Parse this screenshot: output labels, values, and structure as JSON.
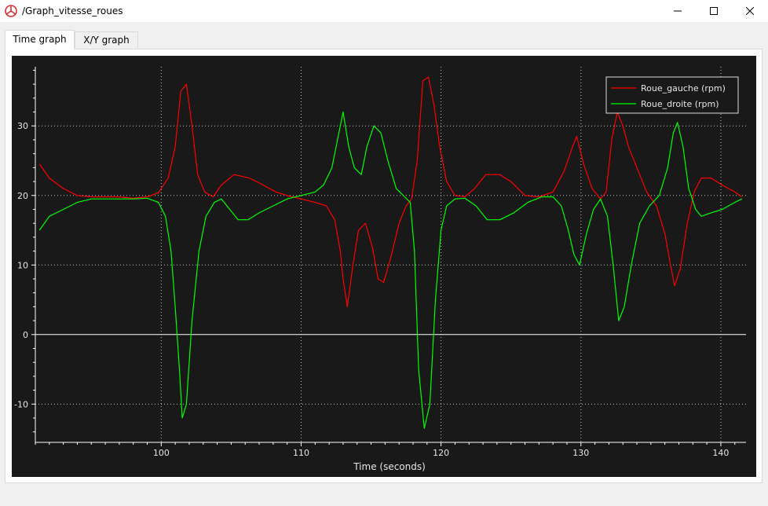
{
  "window": {
    "title": "/Graph_vitesse_roues",
    "icon": "app-logo-icon"
  },
  "tabs": [
    {
      "label": "Time graph",
      "active": true
    },
    {
      "label": "X/Y graph",
      "active": false
    }
  ],
  "chart_data": {
    "type": "line",
    "xlabel": "Time (seconds)",
    "ylabel": "",
    "xlim": [
      91,
      141.8
    ],
    "ylim": [
      -15.5,
      38.5
    ],
    "xticks": [
      100,
      110,
      120,
      130,
      140
    ],
    "yticks": [
      -10,
      0,
      10,
      20,
      30
    ],
    "grid": true,
    "legend_position": "top-right",
    "background": "#191919",
    "series": [
      {
        "name": "Roue_gauche (rpm)",
        "color": "#ff0000",
        "x": [
          91.3,
          92.0,
          93.0,
          94.0,
          95.0,
          96.0,
          97.0,
          98.0,
          99.0,
          99.8,
          100.5,
          101.0,
          101.4,
          101.8,
          102.2,
          102.6,
          103.1,
          103.7,
          104.3,
          105.2,
          106.3,
          107.3,
          108.2,
          109.0,
          110.0,
          111.0,
          111.8,
          112.4,
          112.8,
          113.0,
          113.3,
          113.7,
          114.1,
          114.6,
          115.1,
          115.5,
          115.9,
          116.4,
          117.0,
          117.5,
          117.9,
          118.3,
          118.7,
          119.1,
          119.5,
          119.9,
          120.4,
          121.0,
          121.7,
          122.4,
          123.2,
          124.2,
          125.0,
          126.0,
          127.0,
          128.0,
          128.8,
          129.4,
          129.7,
          130.2,
          130.8,
          131.4,
          131.8,
          132.2,
          132.6,
          133.0,
          133.4,
          134.0,
          134.7,
          135.4,
          136.0,
          136.4,
          136.7,
          137.1,
          137.6,
          138.1,
          138.6,
          139.3,
          140.1,
          141.0,
          141.5
        ],
        "values": [
          24.5,
          22.5,
          21.0,
          20.0,
          19.8,
          19.8,
          19.8,
          19.6,
          19.8,
          20.4,
          22.5,
          27.0,
          35.0,
          36.0,
          30.0,
          23.0,
          20.5,
          19.8,
          21.5,
          23.0,
          22.5,
          21.5,
          20.5,
          20.0,
          19.5,
          19.0,
          18.5,
          16.5,
          12.0,
          8.0,
          4.0,
          10.0,
          15.0,
          16.0,
          12.5,
          8.0,
          7.5,
          11.0,
          16.0,
          18.5,
          19.5,
          25.0,
          36.5,
          37.0,
          33.0,
          27.0,
          22.0,
          20.0,
          19.8,
          21.0,
          23.0,
          23.0,
          22.0,
          20.0,
          19.8,
          20.5,
          23.5,
          27.0,
          28.5,
          24.5,
          21.0,
          19.5,
          20.5,
          28.0,
          32.0,
          30.0,
          27.0,
          24.0,
          20.5,
          18.5,
          14.5,
          10.0,
          7.0,
          9.5,
          16.0,
          20.5,
          22.5,
          22.5,
          21.5,
          20.5,
          19.8
        ]
      },
      {
        "name": "Roue_droite (rpm)",
        "color": "#00ff00",
        "x": [
          91.3,
          92.0,
          93.0,
          94.0,
          95.0,
          96.0,
          97.0,
          98.0,
          99.0,
          99.8,
          100.3,
          100.7,
          101.0,
          101.3,
          101.5,
          101.8,
          102.2,
          102.7,
          103.2,
          103.8,
          104.3,
          104.9,
          105.5,
          106.2,
          107.0,
          108.0,
          109.0,
          110.0,
          111.0,
          111.6,
          112.2,
          112.6,
          113.0,
          113.4,
          113.8,
          114.3,
          114.7,
          115.2,
          115.7,
          116.2,
          116.8,
          117.4,
          117.8,
          118.1,
          118.4,
          118.8,
          119.2,
          119.6,
          120.0,
          120.4,
          121.0,
          121.7,
          122.5,
          123.3,
          124.2,
          125.2,
          126.2,
          127.2,
          128.0,
          128.6,
          129.1,
          129.5,
          129.9,
          130.4,
          130.9,
          131.4,
          131.9,
          132.3,
          132.7,
          133.1,
          133.6,
          134.2,
          134.9,
          135.6,
          136.2,
          136.6,
          136.9,
          137.3,
          137.7,
          138.2,
          138.6,
          139.3,
          140.1,
          141.0,
          141.5
        ],
        "values": [
          15.0,
          17.0,
          18.0,
          19.0,
          19.5,
          19.5,
          19.5,
          19.5,
          19.6,
          19.0,
          17.0,
          12.0,
          4.0,
          -5.0,
          -12.0,
          -10.0,
          2.0,
          12.0,
          17.0,
          19.0,
          19.5,
          18.0,
          16.5,
          16.5,
          17.5,
          18.5,
          19.5,
          20.0,
          20.5,
          21.5,
          24.0,
          28.0,
          32.0,
          27.0,
          24.0,
          23.0,
          27.0,
          30.0,
          29.0,
          25.0,
          21.0,
          19.8,
          19.0,
          12.0,
          -5.0,
          -13.5,
          -10.0,
          5.0,
          15.0,
          18.5,
          19.5,
          19.6,
          18.5,
          16.5,
          16.5,
          17.5,
          19.0,
          19.8,
          19.8,
          18.5,
          15.0,
          11.5,
          10.0,
          14.5,
          18.0,
          19.5,
          17.0,
          10.0,
          2.0,
          4.0,
          10.0,
          16.0,
          18.5,
          20.0,
          24.0,
          29.0,
          30.5,
          27.0,
          21.0,
          18.0,
          17.0,
          17.5,
          18.0,
          19.0,
          19.5
        ]
      }
    ]
  }
}
